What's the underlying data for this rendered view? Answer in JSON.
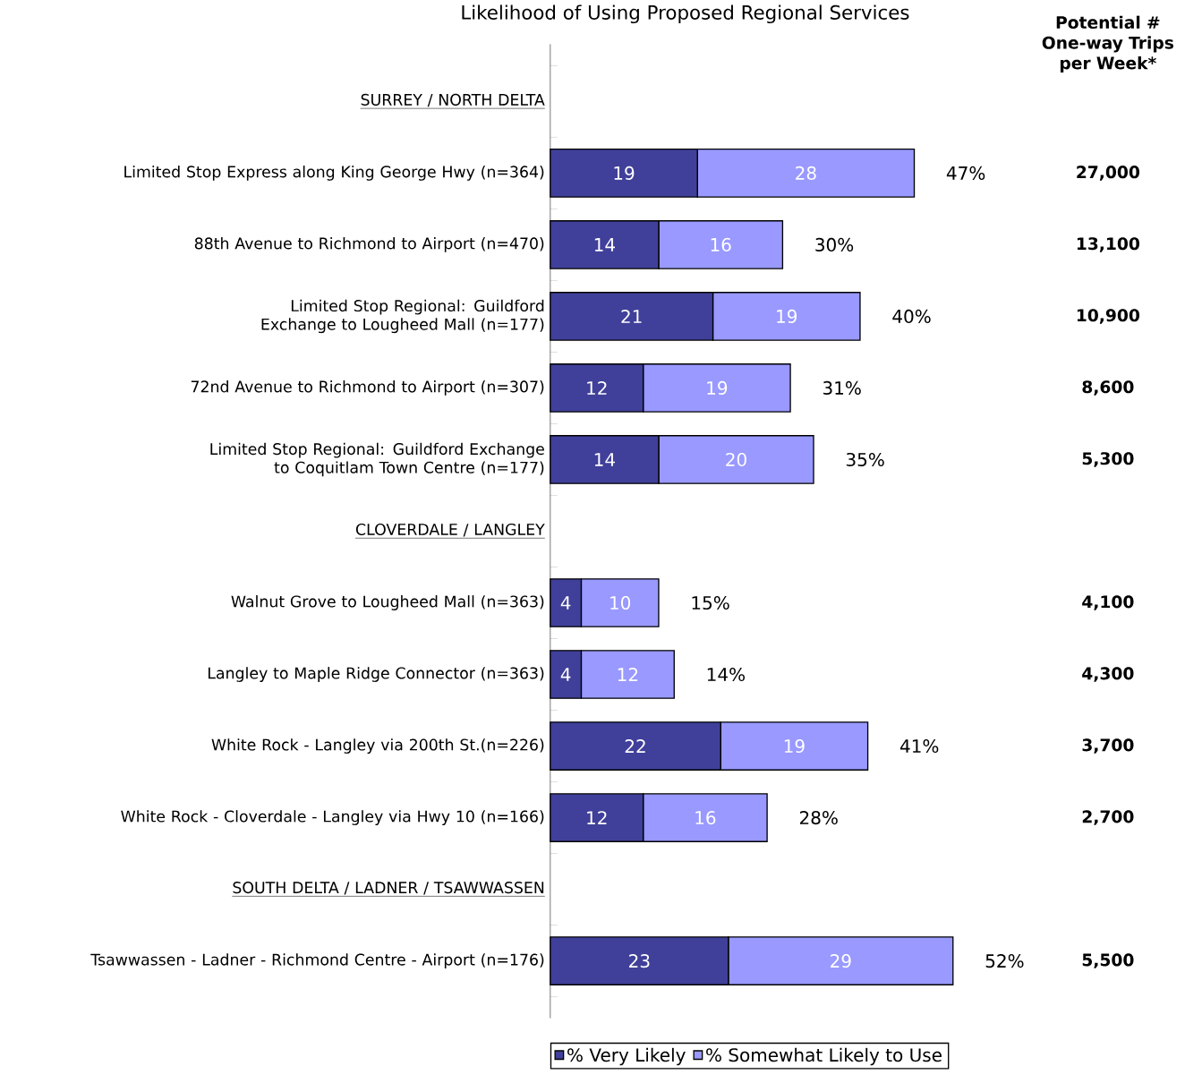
{
  "chart_data": {
    "type": "bar",
    "orientation": "horizontal",
    "stacked": true,
    "title": "Likelihood of Using Proposed Regional Services",
    "categories": [
      "SURREY / NORTH DELTA",
      "Limited Stop Express along King George Hwy (n=364)",
      "88th Avenue to Richmond to Airport (n=470)",
      "Limited Stop Regional: Guildford Exchange to Lougheed Mall (n=177)",
      "72nd Avenue to Richmond to Airport (n=307)",
      "Limited Stop Regional: Guildford Exchange to Coquitlam Town Centre (n=177)",
      "CLOVERDALE / LANGLEY",
      "Walnut Grove to Lougheed Mall (n=363)",
      "Langley to Maple Ridge Connector (n=363)",
      "White Rock - Langley via 200th St.(n=226)",
      "White Rock - Cloverdale - Langley via Hwy 10 (n=166)",
      "SOUTH DELTA / LADNER / TSAWWASSEN",
      "Tsawwassen - Ladner - Richmond Centre - Airport (n=176)"
    ],
    "series": [
      {
        "name": "% Very Likely",
        "color": "#40409a",
        "values": [
          null,
          19,
          14,
          21,
          12,
          14,
          null,
          4,
          4,
          22,
          12,
          null,
          23
        ]
      },
      {
        "name": "% Somewhat Likely to Use",
        "color": "#9999ff",
        "values": [
          null,
          28,
          16,
          19,
          19,
          20,
          null,
          10,
          12,
          19,
          16,
          null,
          29
        ]
      }
    ],
    "data_labels": true,
    "annotations": [
      "Potential # One-way Trips per Week*",
      "27,000",
      "13,100",
      "10,900",
      "8,600",
      "5,300",
      "4,100",
      "4,300",
      "3,700",
      "2,700",
      "5,500",
      {
        "text": "47%",
        "x": 47,
        "y": "Limited Stop Express along King George Hwy (n=364)"
      },
      {
        "text": "30%",
        "x": 30,
        "y": "88th Avenue to Richmond to Airport (n=470)"
      },
      {
        "text": "40%",
        "x": 40,
        "y": "Limited Stop Regional: Guildford Exchange to Lougheed Mall (n=177)"
      },
      {
        "text": "31%",
        "x": 31,
        "y": "72nd Avenue to Richmond to Airport (n=307)"
      },
      {
        "text": "35%",
        "x": 34,
        "y": "Limited Stop Regional: Guildford Exchange to Coquitlam Town Centre (n=177)"
      },
      {
        "text": "15%",
        "x": 14,
        "y": "Walnut Grove to Lougheed Mall (n=363)"
      },
      {
        "text": "14%",
        "x": 16,
        "y": "Langley to Maple Ridge Connector (n=363)"
      },
      {
        "text": "41%",
        "x": 41,
        "y": "White Rock - Langley via 200th St.(n=226)"
      },
      {
        "text": "28%",
        "x": 28,
        "y": "White Rock - Cloverdale - Langley via Hwy 10 (n=166)"
      },
      {
        "text": "52%",
        "x": 52,
        "y": "Tsawwassen - Ladner - Richmond Centre - Airport (n=176)"
      }
    ],
    "legend": "bottom left",
    "tick_labels": "y"
  }
}
